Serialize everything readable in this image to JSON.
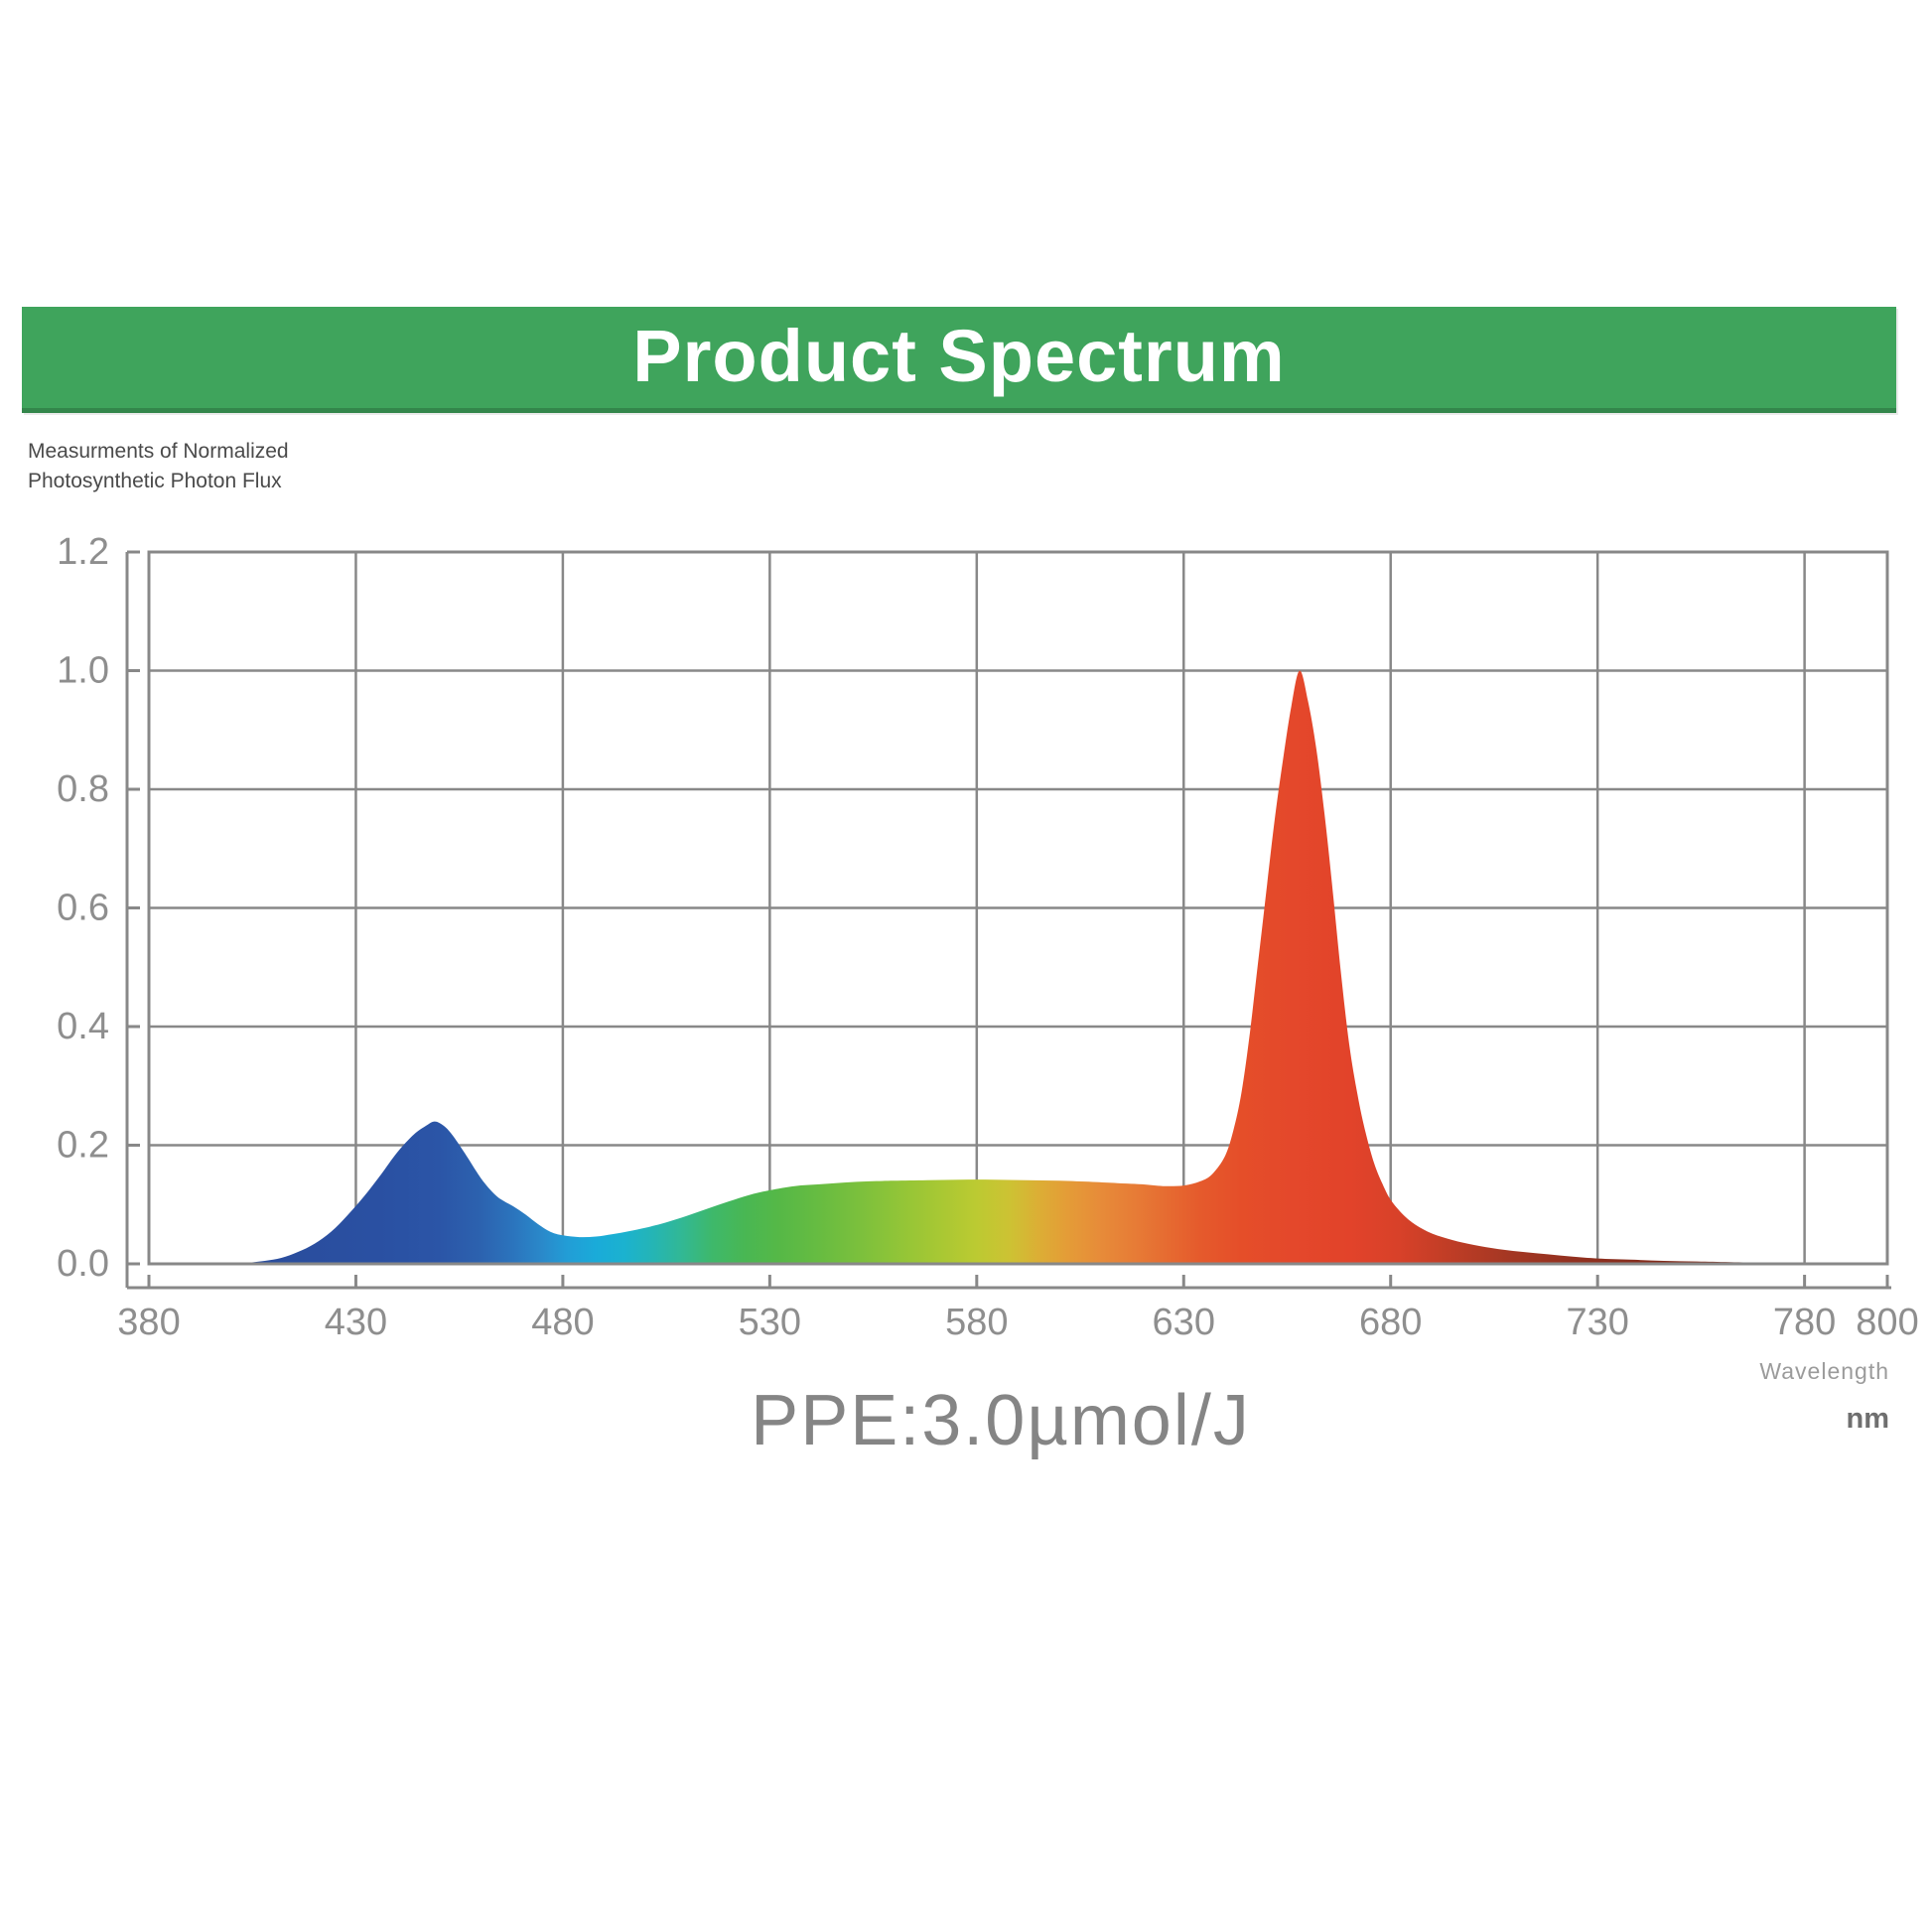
{
  "banner": {
    "title": "Product Spectrum",
    "background": "#3FA45C",
    "text_color": "#ffffff"
  },
  "caption": {
    "line1": "Measurments of Normalized",
    "line2": "Photosynthetic Photon Flux"
  },
  "footer": {
    "ppe_label": "PPE:3.0µmol/J",
    "axis_label": "Wavelength",
    "axis_unit": "nm"
  },
  "chart_data": {
    "type": "area",
    "title": "Product Spectrum",
    "xlabel": "Wavelength nm",
    "ylabel": "Normalized Photosynthetic Photon Flux",
    "xlim": [
      380,
      800
    ],
    "ylim": [
      0,
      1.2
    ],
    "x_ticks": [
      380,
      430,
      480,
      530,
      580,
      630,
      680,
      730,
      780,
      800
    ],
    "y_ticks": [
      0.0,
      0.2,
      0.4,
      0.6,
      0.8,
      1.0,
      1.2
    ],
    "grid": true,
    "grid_color": "#888888",
    "tick_label_color": "#8e8e8e",
    "peaks": [
      {
        "nm": 449,
        "value": 0.24,
        "name": "blue peak"
      },
      {
        "nm": 658,
        "value": 1.0,
        "name": "red peak"
      }
    ],
    "points": [
      [
        400,
        0
      ],
      [
        404,
        0.002
      ],
      [
        408,
        0.005
      ],
      [
        412,
        0.01
      ],
      [
        416,
        0.02
      ],
      [
        420,
        0.034
      ],
      [
        424,
        0.054
      ],
      [
        428,
        0.082
      ],
      [
        432,
        0.114
      ],
      [
        436,
        0.15
      ],
      [
        440,
        0.188
      ],
      [
        444,
        0.218
      ],
      [
        447,
        0.233
      ],
      [
        449,
        0.24
      ],
      [
        451,
        0.234
      ],
      [
        453,
        0.22
      ],
      [
        456,
        0.19
      ],
      [
        459,
        0.157
      ],
      [
        461,
        0.137
      ],
      [
        463,
        0.121
      ],
      [
        465,
        0.109
      ],
      [
        468,
        0.097
      ],
      [
        471,
        0.083
      ],
      [
        474,
        0.067
      ],
      [
        477,
        0.054
      ],
      [
        480,
        0.048
      ],
      [
        484,
        0.045
      ],
      [
        488,
        0.046
      ],
      [
        492,
        0.05
      ],
      [
        496,
        0.055
      ],
      [
        500,
        0.061
      ],
      [
        505,
        0.07
      ],
      [
        510,
        0.081
      ],
      [
        515,
        0.093
      ],
      [
        520,
        0.105
      ],
      [
        525,
        0.116
      ],
      [
        530,
        0.124
      ],
      [
        536,
        0.131
      ],
      [
        542,
        0.134
      ],
      [
        548,
        0.137
      ],
      [
        554,
        0.139
      ],
      [
        560,
        0.14
      ],
      [
        568,
        0.141
      ],
      [
        576,
        0.142
      ],
      [
        584,
        0.142
      ],
      [
        592,
        0.141
      ],
      [
        600,
        0.14
      ],
      [
        608,
        0.138
      ],
      [
        614,
        0.136
      ],
      [
        620,
        0.134
      ],
      [
        625,
        0.131
      ],
      [
        630,
        0.132
      ],
      [
        634,
        0.139
      ],
      [
        637,
        0.152
      ],
      [
        640,
        0.182
      ],
      [
        642,
        0.225
      ],
      [
        644,
        0.29
      ],
      [
        646,
        0.39
      ],
      [
        648,
        0.51
      ],
      [
        650,
        0.63
      ],
      [
        652,
        0.75
      ],
      [
        654,
        0.85
      ],
      [
        656,
        0.94
      ],
      [
        658,
        1.0
      ],
      [
        660,
        0.95
      ],
      [
        662,
        0.87
      ],
      [
        664,
        0.76
      ],
      [
        666,
        0.63
      ],
      [
        668,
        0.49
      ],
      [
        670,
        0.37
      ],
      [
        672,
        0.285
      ],
      [
        674,
        0.22
      ],
      [
        676,
        0.17
      ],
      [
        678,
        0.135
      ],
      [
        680,
        0.108
      ],
      [
        683,
        0.083
      ],
      [
        686,
        0.066
      ],
      [
        690,
        0.051
      ],
      [
        695,
        0.04
      ],
      [
        700,
        0.032
      ],
      [
        706,
        0.025
      ],
      [
        712,
        0.02
      ],
      [
        718,
        0.016
      ],
      [
        724,
        0.012
      ],
      [
        730,
        0.009
      ],
      [
        738,
        0.007
      ],
      [
        746,
        0.005
      ],
      [
        754,
        0.004
      ],
      [
        762,
        0.003
      ],
      [
        772,
        0.002
      ],
      [
        780,
        0.001
      ],
      [
        790,
        0
      ]
    ],
    "gradient_stops": [
      [
        400,
        "#2a4c9b"
      ],
      [
        435,
        "#2a50a2"
      ],
      [
        450,
        "#2b55a7"
      ],
      [
        460,
        "#2c62af"
      ],
      [
        468,
        "#2b74bd"
      ],
      [
        475,
        "#2a89ca"
      ],
      [
        481,
        "#229dd6"
      ],
      [
        488,
        "#1aabd9"
      ],
      [
        495,
        "#1bb2cf"
      ],
      [
        502,
        "#25b5b4"
      ],
      [
        509,
        "#32b893"
      ],
      [
        516,
        "#3eb86b"
      ],
      [
        524,
        "#49b753"
      ],
      [
        532,
        "#55b847"
      ],
      [
        542,
        "#67bc41"
      ],
      [
        552,
        "#7cc03c"
      ],
      [
        562,
        "#93c537"
      ],
      [
        572,
        "#aac833"
      ],
      [
        580,
        "#bcca32"
      ],
      [
        588,
        "#cdc233"
      ],
      [
        595,
        "#dcae35"
      ],
      [
        602,
        "#e49c37"
      ],
      [
        610,
        "#e78b39"
      ],
      [
        618,
        "#e77c36"
      ],
      [
        626,
        "#e66b31"
      ],
      [
        634,
        "#e55a2c"
      ],
      [
        644,
        "#e54e29"
      ],
      [
        656,
        "#e4482b"
      ],
      [
        670,
        "#e2432a"
      ],
      [
        682,
        "#d84129"
      ],
      [
        694,
        "#c03d26"
      ],
      [
        708,
        "#a53723"
      ],
      [
        724,
        "#92301f"
      ],
      [
        744,
        "#832c1c"
      ],
      [
        790,
        "#772a1a"
      ]
    ]
  }
}
